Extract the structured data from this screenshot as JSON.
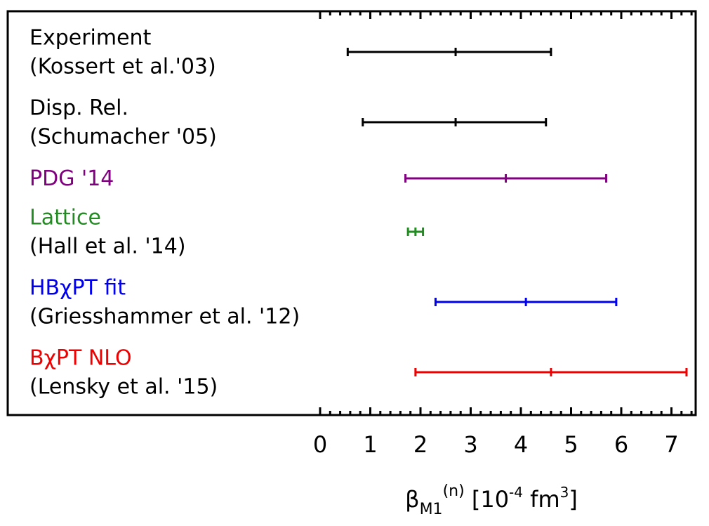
{
  "chart_data": {
    "type": "errorbar",
    "xlabel": {
      "symbol": "β",
      "subscript": "M1",
      "superscript": "(n)",
      "units_prefix": " [10",
      "units_exp": "-4",
      "units_mid": " fm",
      "units_exp2": "3",
      "units_suffix": "]"
    },
    "xlim": [
      -0.1,
      7.45
    ],
    "x_ticks": [
      "0",
      "1",
      "2",
      "3",
      "4",
      "5",
      "6",
      "7"
    ],
    "grid": false,
    "entries": [
      {
        "label_lines": [
          "Experiment",
          "(Kossert et al.'03)"
        ],
        "label_colors": [
          "#000000",
          "#000000"
        ],
        "center": 2.7,
        "low": 0.55,
        "high": 4.6,
        "color": "#000000"
      },
      {
        "label_lines": [
          "Disp. Rel.",
          "(Schumacher '05)"
        ],
        "label_colors": [
          "#000000",
          "#000000"
        ],
        "center": 2.7,
        "low": 0.85,
        "high": 4.5,
        "color": "#000000"
      },
      {
        "label_lines": [
          "PDG '14"
        ],
        "label_colors": [
          "#800080"
        ],
        "center": 3.7,
        "low": 1.7,
        "high": 5.7,
        "color": "#800080"
      },
      {
        "label_lines": [
          "Lattice",
          "(Hall et al. '14)"
        ],
        "label_colors": [
          "#228B22",
          "#000000"
        ],
        "center": 1.9,
        "low": 1.75,
        "high": 2.05,
        "color": "#228B22"
      },
      {
        "label_lines": [
          "HBχPT fit",
          "(Griesshammer et al. '12)"
        ],
        "label_colors": [
          "#0000EE",
          "#000000"
        ],
        "center": 4.1,
        "low": 2.3,
        "high": 5.9,
        "color": "#0000EE"
      },
      {
        "label_lines": [
          "BχPT NLO",
          "(Lensky et al. '15)"
        ],
        "label_colors": [
          "#EE0000",
          "#000000"
        ],
        "center": 4.6,
        "low": 1.9,
        "high": 7.3,
        "color": "#EE0000"
      }
    ]
  }
}
